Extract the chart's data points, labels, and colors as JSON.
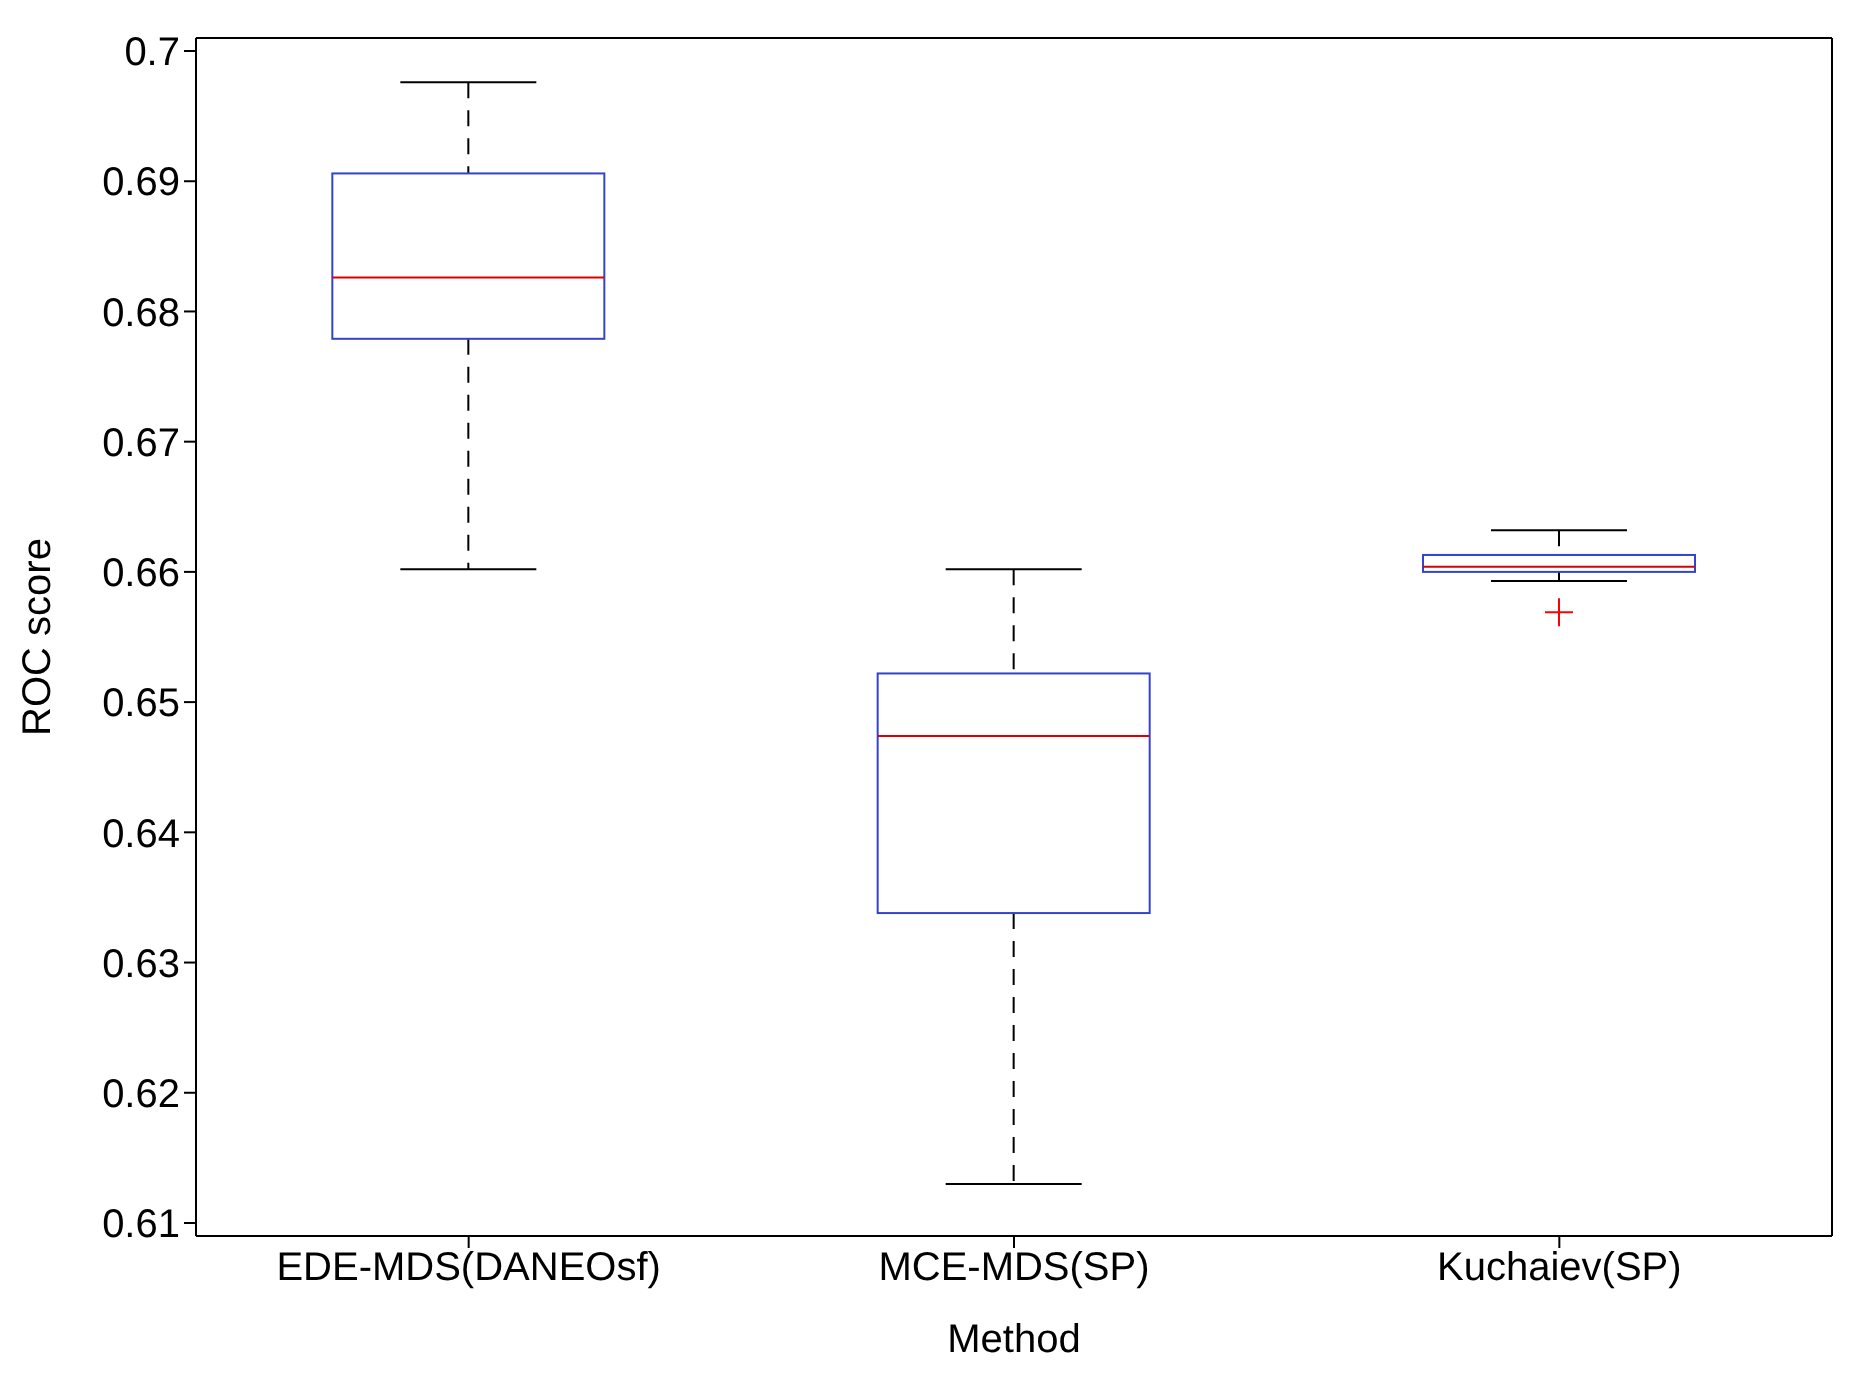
{
  "chart_data": {
    "type": "box",
    "xlabel": "Method",
    "ylabel": "ROC score",
    "categories": [
      "EDE-MDS(DANEOsf)",
      "MCE-MDS(SP)",
      "Kuchaiev(SP)"
    ],
    "boxes": [
      {
        "low": 0.6602,
        "q1": 0.6779,
        "median": 0.6826,
        "q3": 0.6906,
        "high": 0.6976
      },
      {
        "low": 0.613,
        "q1": 0.6338,
        "median": 0.6474,
        "q3": 0.6522,
        "high": 0.6602
      },
      {
        "low": 0.6593,
        "q1": 0.66,
        "median": 0.6604,
        "q3": 0.6613,
        "high": 0.6632,
        "outliers": [
          0.6569
        ]
      }
    ],
    "color": "#3344cc",
    "ylim": [
      0.609,
      0.701
    ],
    "yticks": [
      0.61,
      0.62,
      0.63,
      0.64,
      0.65,
      0.66,
      0.67,
      0.68,
      0.69,
      0.7
    ],
    "grid": false
  }
}
